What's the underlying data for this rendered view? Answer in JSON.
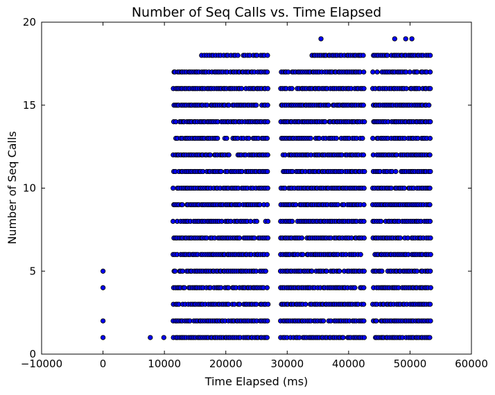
{
  "chart_data": {
    "type": "scatter",
    "title": "Number of Seq Calls vs. Time Elapsed",
    "xlabel": "Time Elapsed (ms)",
    "ylabel": "Number of Seq Calls",
    "xlim": [
      -10000,
      60000
    ],
    "ylim": [
      0,
      20
    ],
    "xticks": [
      -10000,
      0,
      10000,
      20000,
      30000,
      40000,
      50000,
      60000
    ],
    "xtick_labels": [
      "−10000",
      "0",
      "10000",
      "20000",
      "30000",
      "40000",
      "50000",
      "60000"
    ],
    "yticks": [
      0,
      5,
      10,
      15,
      20
    ],
    "ytick_labels": [
      "0",
      "5",
      "10",
      "15",
      "20"
    ],
    "grid": false,
    "legend": false,
    "marker_color": "#0000ff",
    "marker_edge_color": "#000000",
    "clusters": [
      {
        "x_start": 11500,
        "x_end": 27000,
        "y_values": [
          1,
          2,
          3,
          4,
          5,
          6,
          7,
          8,
          9,
          10,
          11,
          12,
          13,
          14,
          15,
          16,
          17
        ],
        "spacing": 300
      },
      {
        "x_start": 16000,
        "x_end": 27000,
        "y_values": [
          18
        ],
        "spacing": 400
      },
      {
        "x_start": 29000,
        "x_end": 42500,
        "y_values": [
          1,
          2,
          3,
          4,
          5,
          6,
          7,
          8,
          9,
          10,
          11,
          12,
          13,
          14,
          15,
          16,
          17
        ],
        "spacing": 300
      },
      {
        "x_start": 34000,
        "x_end": 42500,
        "y_values": [
          18
        ],
        "spacing": 300
      },
      {
        "x_start": 44000,
        "x_end": 53500,
        "y_values": [
          1,
          2,
          3,
          4,
          5,
          6,
          7,
          8,
          9,
          10,
          11,
          12,
          13,
          14,
          15,
          16,
          17,
          18
        ],
        "spacing": 300
      }
    ],
    "points": [
      {
        "x": 0,
        "y": 1
      },
      {
        "x": 0,
        "y": 2
      },
      {
        "x": 0,
        "y": 4
      },
      {
        "x": 0,
        "y": 5
      },
      {
        "x": 7700,
        "y": 1
      },
      {
        "x": 9900,
        "y": 1
      },
      {
        "x": 35500,
        "y": 19
      },
      {
        "x": 47500,
        "y": 19
      },
      {
        "x": 49300,
        "y": 19
      },
      {
        "x": 50300,
        "y": 19
      }
    ]
  }
}
